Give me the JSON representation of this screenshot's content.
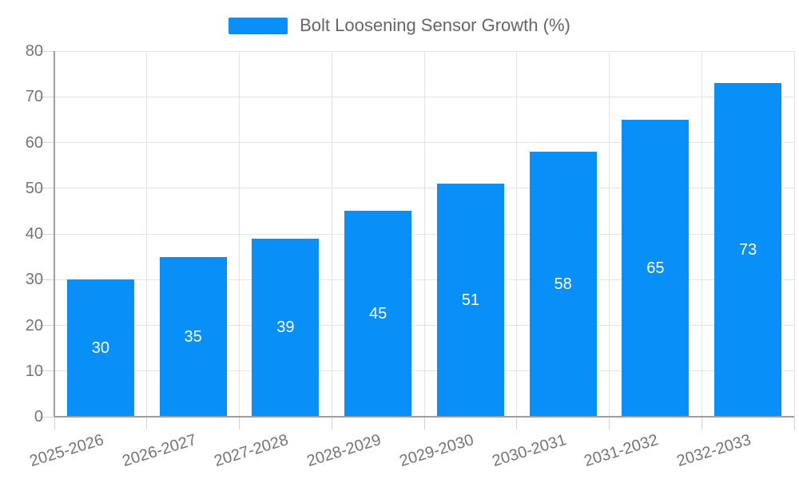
{
  "chart_data": {
    "type": "bar",
    "title": "Bolt Loosening Sensor Growth (%)",
    "legend": {
      "label": "Bolt Loosening Sensor Growth (%)",
      "position": "top"
    },
    "categories": [
      "2025-2026",
      "2026-2027",
      "2027-2028",
      "2028-2029",
      "2029-2030",
      "2030-2031",
      "2031-2032",
      "2032-2033"
    ],
    "values": [
      30,
      35,
      39,
      45,
      51,
      58,
      65,
      73
    ],
    "xlabel": "",
    "ylabel": "",
    "ylim": [
      0,
      80
    ],
    "ytick_step": 10,
    "yticks": [
      0,
      10,
      20,
      30,
      40,
      50,
      60,
      70,
      80
    ],
    "grid": true,
    "value_labels_shown": true,
    "colors": {
      "bar": "#0890f8",
      "value_label": "#ffffff",
      "grid": "#e3e3e3",
      "tick": "#d4d4d4",
      "axis": "#9e9e9e",
      "tick_label": "#757575",
      "legend_text": "#666666",
      "background": "#ffffff"
    }
  }
}
